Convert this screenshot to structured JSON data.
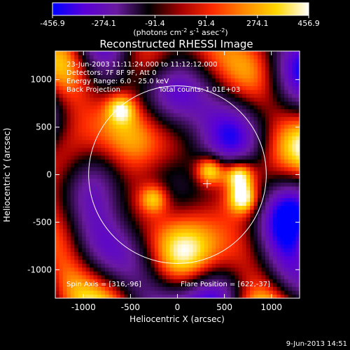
{
  "chart_data": {
    "type": "heatmap",
    "title": "Reconstructed RHESSI Image",
    "xlabel": "Heliocentric X (arcsec)",
    "ylabel": "Heliocentric Y (arcsec)",
    "xlim": [
      -1300,
      1300
    ],
    "ylim": [
      -1300,
      1300
    ],
    "xticks": [
      {
        "value": -1000,
        "label": "-1000"
      },
      {
        "value": -500,
        "label": "-500"
      },
      {
        "value": 0,
        "label": "0"
      },
      {
        "value": 500,
        "label": "500"
      },
      {
        "value": 1000,
        "label": "1000"
      }
    ],
    "yticks": [
      {
        "value": -1000,
        "label": "-1000"
      },
      {
        "value": -500,
        "label": "-500"
      },
      {
        "value": 0,
        "label": "0"
      },
      {
        "value": 500,
        "label": "500"
      },
      {
        "value": 1000,
        "label": "1000"
      }
    ],
    "colorbar": {
      "range": [
        -456.9,
        456.9
      ],
      "tick_labels": [
        "-456.9",
        "-274.1",
        "-91.4",
        "91.4",
        "274.1",
        "456.9"
      ],
      "unit_parts": {
        "base": "(photons cm",
        "exp1": "-2",
        "mid1": " s",
        "exp2": "-1",
        "mid2": " asec",
        "exp3": "-2",
        "tail": ")"
      },
      "colors": [
        "#0000ff",
        "#5a00d8",
        "#6a1aa0",
        "#000000",
        "#a40000",
        "#ff2a00",
        "#ff8a00",
        "#ffd700",
        "#ffffff"
      ]
    },
    "annotations": {
      "time_range": "23-Jun-2003 11:11:24.000 to 11:12:12.000",
      "detectors": "Detectors: 7F 8F 9F, Att 0",
      "energy_range": "Energy Range: 6.0 - 25.0 keV",
      "method": "Back Projection",
      "total_counts": "Total counts: 1.01E+03",
      "spin_axis": "Spin Axis = [316,-96]",
      "flare_position": "Flare Position = [622,-37]"
    },
    "solar_disk": {
      "center": [
        0,
        0
      ],
      "radius": 945
    },
    "marker": {
      "x": 316,
      "y": -96
    },
    "bright_sources": [
      {
        "x": 350,
        "y": 50,
        "intensity": 456.9
      },
      {
        "x": 650,
        "y": 0,
        "intensity": 456.9
      },
      {
        "x": 700,
        "y": -250,
        "intensity": 380
      },
      {
        "x": -250,
        "y": -250,
        "intensity": 320
      },
      {
        "x": -600,
        "y": 700,
        "intensity": 300
      }
    ],
    "grid": false
  },
  "footer": {
    "date": "9-Jun-2013 14:51"
  }
}
